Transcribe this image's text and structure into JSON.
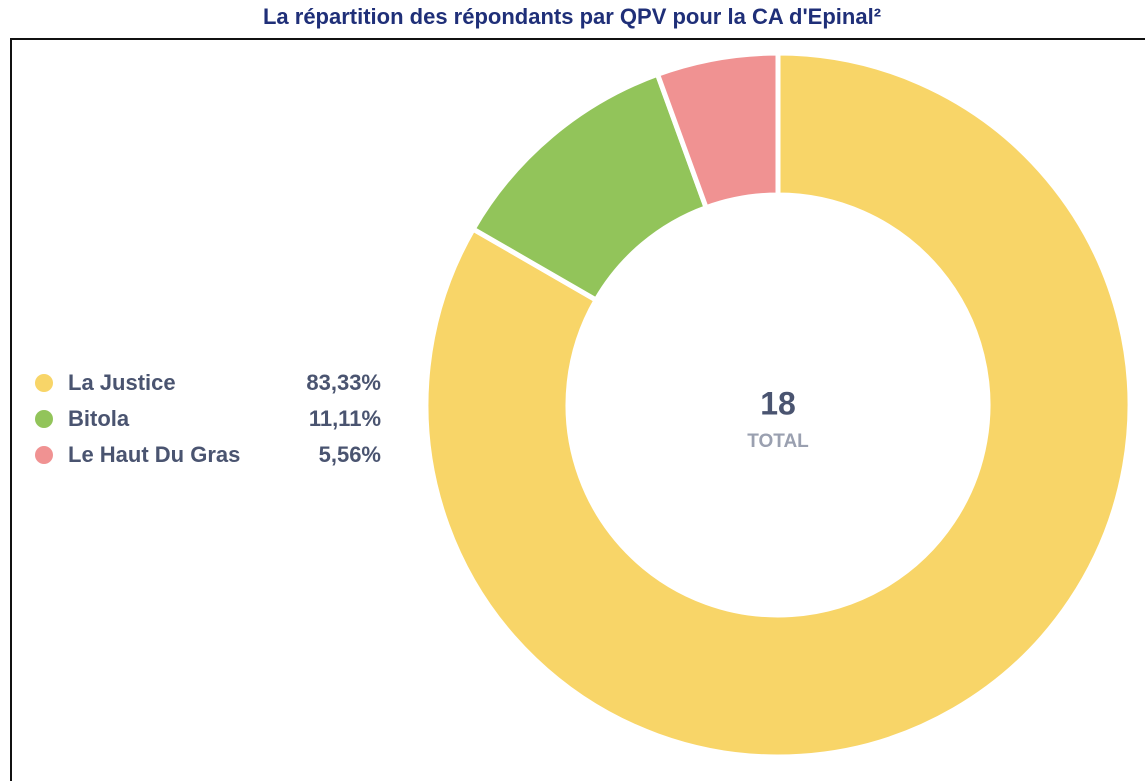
{
  "chart_data": {
    "type": "donut",
    "title": "La répartition des répondants par QPV pour la CA d'Epinal²",
    "categories": [
      "La Justice",
      "Bitola",
      "Le Haut Du Gras"
    ],
    "values": [
      83.33,
      11.11,
      5.56
    ],
    "value_labels": [
      "83,33%",
      "11,11%",
      "5,56%"
    ],
    "colors": [
      "#f8d568",
      "#92c45a",
      "#f09292"
    ],
    "total": 18,
    "total_label": "TOTAL",
    "legend": "left"
  }
}
